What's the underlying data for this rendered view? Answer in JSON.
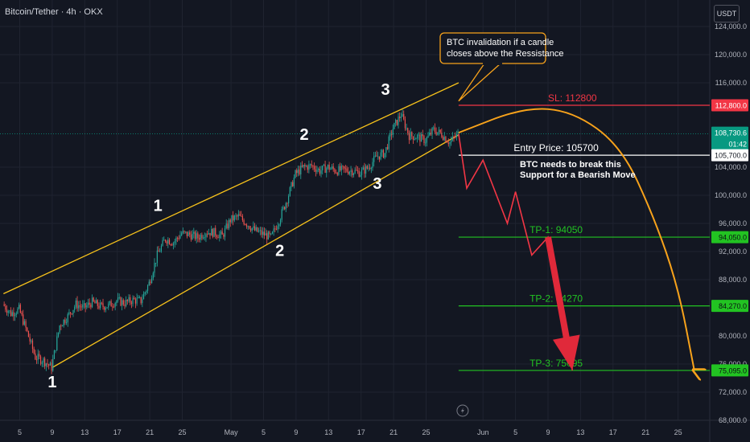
{
  "header": {
    "symbol": "Bitcoin/Tether · 4h · OKX",
    "currency_button": "USDT"
  },
  "chart_data": {
    "type": "candlestick",
    "y_ticks": [
      "124,000.0",
      "120,000.0",
      "116,000.0",
      "104,000.0",
      "100,000.0",
      "96,000.0",
      "92,000.0",
      "88,000.0",
      "80,000.0",
      "76,000.0",
      "72,000.0",
      "68,000.0"
    ],
    "x_ticks": [
      "5",
      "9",
      "13",
      "17",
      "21",
      "25",
      "May",
      "5",
      "9",
      "13",
      "17",
      "21",
      "25",
      "Jun",
      "5",
      "9",
      "13",
      "17",
      "21",
      "25"
    ],
    "ylim": [
      67000,
      126500
    ],
    "price_labels": [
      {
        "text": "112,800.0",
        "price": 112800,
        "color": "#f23645"
      },
      {
        "text": "108,730.6",
        "price": 108730.6,
        "color": "#089981",
        "sub": "01:42"
      },
      {
        "text": "105,700.0",
        "price": 105700,
        "color": "#ffffff"
      },
      {
        "text": "94,050.0",
        "price": 94050,
        "color": "#22c322"
      },
      {
        "text": "84,270.0",
        "price": 84270,
        "color": "#22c322"
      },
      {
        "text": "75,095.0",
        "price": 75095,
        "color": "#22c322"
      }
    ],
    "levels": [
      {
        "label": "SL: 112800",
        "price": 112800,
        "color": "#f23645"
      },
      {
        "label": "Entry Price: 105700",
        "price": 105700,
        "color": "#ffffff"
      },
      {
        "label": "TP-1: 94050",
        "price": 94050,
        "color": "#22c322"
      },
      {
        "label": "TP-2: 84270",
        "price": 84270,
        "color": "#22c322"
      },
      {
        "label": "TP-3: 75095",
        "price": 75095,
        "color": "#22c322"
      }
    ],
    "wave_labels": [
      "1",
      "1",
      "2",
      "2",
      "3",
      "3"
    ],
    "callout": [
      "BTC invalidation if a candle",
      "closes above the Ressistance"
    ],
    "support_note": [
      "BTC needs to break this",
      "Support for a Bearish Move"
    ],
    "close_points": [
      [
        "2025-04-03",
        84500
      ],
      [
        "2025-04-04",
        83200
      ],
      [
        "2025-04-05",
        83800
      ],
      [
        "2025-04-06",
        80500
      ],
      [
        "2025-04-07",
        77000
      ],
      [
        "2025-04-08",
        76500
      ],
      [
        "2025-04-09",
        75500
      ],
      [
        "2025-04-10",
        81500
      ],
      [
        "2025-04-11",
        82800
      ],
      [
        "2025-04-12",
        84500
      ],
      [
        "2025-04-13",
        84000
      ],
      [
        "2025-04-14",
        84800
      ],
      [
        "2025-04-15",
        84200
      ],
      [
        "2025-04-16",
        84300
      ],
      [
        "2025-04-17",
        85000
      ],
      [
        "2025-04-18",
        84700
      ],
      [
        "2025-04-19",
        85100
      ],
      [
        "2025-04-20",
        85000
      ],
      [
        "2025-04-21",
        87500
      ],
      [
        "2025-04-22",
        91500
      ],
      [
        "2025-04-23",
        93800
      ],
      [
        "2025-04-24",
        93300
      ],
      [
        "2025-04-25",
        94600
      ],
      [
        "2025-04-26",
        94400
      ],
      [
        "2025-04-27",
        94000
      ],
      [
        "2025-04-28",
        94800
      ],
      [
        "2025-04-29",
        94700
      ],
      [
        "2025-04-30",
        94200
      ],
      [
        "2025-05-01",
        96500
      ],
      [
        "2025-05-02",
        97000
      ],
      [
        "2025-05-03",
        96000
      ],
      [
        "2025-05-04",
        95000
      ],
      [
        "2025-05-05",
        94500
      ],
      [
        "2025-05-06",
        94000
      ],
      [
        "2025-05-07",
        96500
      ],
      [
        "2025-05-08",
        99500
      ],
      [
        "2025-05-09",
        103000
      ],
      [
        "2025-05-10",
        104000
      ],
      [
        "2025-05-11",
        104200
      ],
      [
        "2025-05-12",
        103500
      ],
      [
        "2025-05-13",
        104000
      ],
      [
        "2025-05-14",
        103500
      ],
      [
        "2025-05-15",
        103600
      ],
      [
        "2025-05-16",
        103500
      ],
      [
        "2025-05-17",
        103200
      ],
      [
        "2025-05-18",
        104000
      ],
      [
        "2025-05-19",
        105500
      ],
      [
        "2025-05-20",
        106000
      ],
      [
        "2025-05-21",
        109500
      ],
      [
        "2025-05-22",
        111500
      ],
      [
        "2025-05-23",
        108500
      ],
      [
        "2025-05-24",
        108300
      ],
      [
        "2025-05-25",
        107800
      ],
      [
        "2025-05-26",
        109300
      ],
      [
        "2025-05-27",
        108700
      ],
      [
        "2025-05-28",
        107500
      ],
      [
        "2025-05-29",
        108730.6
      ]
    ],
    "projection_points": [
      [
        "2025-05-29",
        108730.6
      ],
      [
        "2025-05-30",
        101000
      ],
      [
        "2025-06-01",
        105000
      ],
      [
        "2025-06-04",
        96000
      ],
      [
        "2025-06-05",
        100500
      ],
      [
        "2025-06-07",
        91500
      ],
      [
        "2025-06-09",
        94050
      ],
      [
        "2025-06-12",
        75095
      ]
    ],
    "channel_upper": [
      [
        "2025-04-03",
        86000
      ],
      [
        "2025-05-29",
        116000
      ]
    ],
    "channel_lower": [
      [
        "2025-04-09",
        75500
      ],
      [
        "2025-05-29",
        108600
      ]
    ],
    "curve_points": [
      [
        "2025-05-29",
        108900
      ],
      [
        "2025-06-06",
        112500
      ],
      [
        "2025-06-12",
        112000
      ],
      [
        "2025-06-18",
        107000
      ],
      [
        "2025-06-22",
        97000
      ],
      [
        "2025-06-25",
        87000
      ],
      [
        "2025-06-27",
        75095
      ]
    ]
  }
}
